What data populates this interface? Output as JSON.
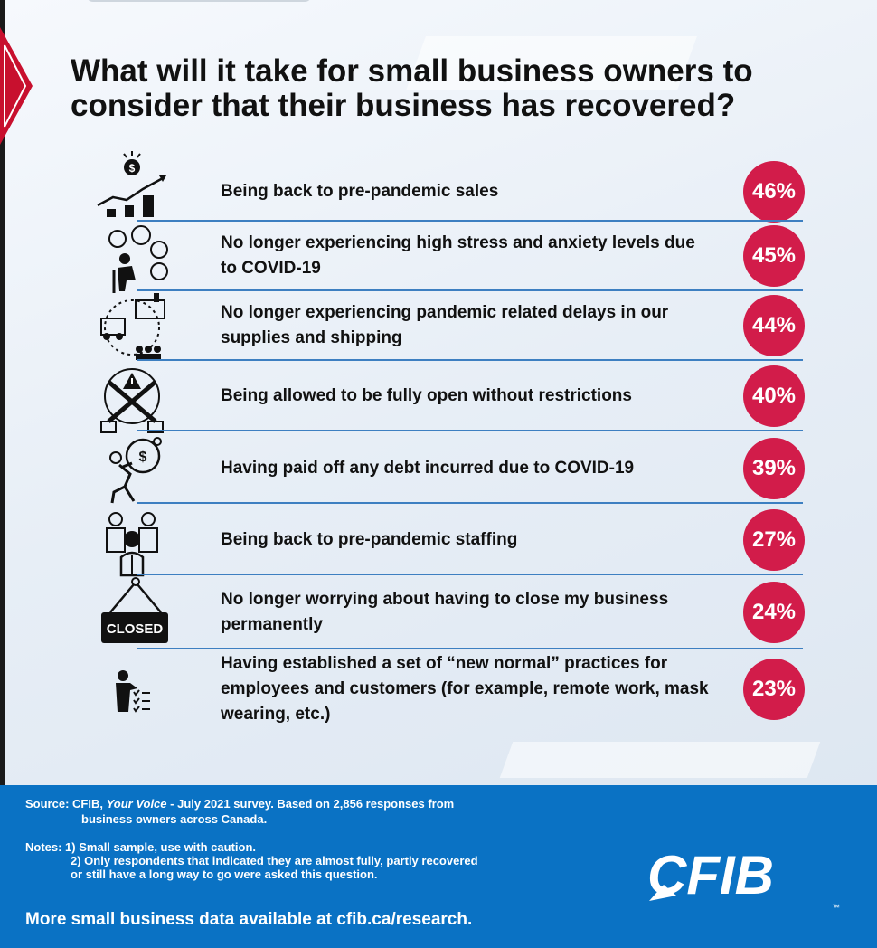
{
  "title": "What will it take for small business owners to consider that their business has recovered?",
  "colors": {
    "accent_red": "#d21c4a",
    "divider_blue": "#3d7fc1",
    "footer_blue": "#0a72c4"
  },
  "chart_data": {
    "type": "bar",
    "title": "What will it take for small business owners to consider that their business has recovered?",
    "value_suffix": "%",
    "rows": [
      {
        "label": "Being back to pre-pandemic sales",
        "value": 46,
        "icon": "sales-growth-icon"
      },
      {
        "label": "No longer experiencing high stress and anxiety levels due to COVID-19",
        "value": 45,
        "icon": "stressed-person-icon"
      },
      {
        "label": "No longer experiencing pandemic related delays in our supplies and shipping",
        "value": 44,
        "icon": "supply-chain-icon"
      },
      {
        "label": "Being allowed to be fully open without restrictions",
        "value": 40,
        "icon": "restriction-warning-icon"
      },
      {
        "label": "Having paid off any debt incurred due to COVID-19",
        "value": 39,
        "icon": "debt-burden-icon"
      },
      {
        "label": "Being back to pre-pandemic staffing",
        "value": 27,
        "icon": "staff-team-icon"
      },
      {
        "label": "No longer worrying about having to close my business permanently",
        "value": 24,
        "icon": "closed-sign-icon"
      },
      {
        "label": "Having established a set of “new normal” practices for employees and customers (for example, remote work, mask wearing, etc.)",
        "value": 23,
        "icon": "practices-checklist-icon"
      }
    ]
  },
  "footer": {
    "source_prefix": "Source: CFIB, ",
    "source_italic": "Your Voice",
    "source_rest": " - July 2021 survey. Based on 2,856 responses from",
    "source_line2": "business owners across Canada.",
    "notes_line1": "Notes: 1) Small sample, use with caution.",
    "notes_line2": "2) Only respondents that indicated they are almost fully, partly recovered",
    "notes_line3": "or still have a long way to go were asked this question.",
    "more": "More small business data available at cfib.ca/research.",
    "logo_text": "CFIB",
    "logo_tm": "™"
  }
}
